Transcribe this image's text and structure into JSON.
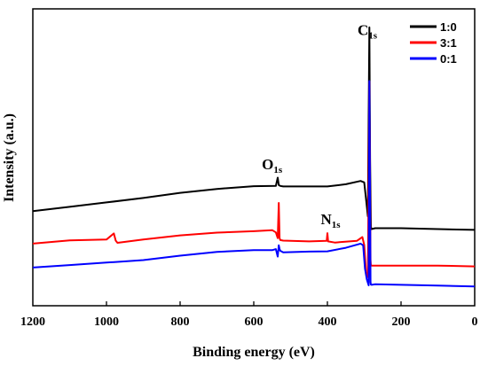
{
  "chart_data": {
    "type": "line",
    "xlabel": "Binding energy (eV)",
    "ylabel": "Intensity (a.u.)",
    "xlim": [
      1200,
      0
    ],
    "x_reversed": true,
    "x_ticks": [
      1200,
      1000,
      800,
      600,
      400,
      200,
      0
    ],
    "y_ticks_shown": false,
    "grid": false,
    "legend_position": "top-right",
    "y_unit_note": "arbitrary units, normalized 0-100",
    "ylim": [
      0,
      100
    ],
    "series": [
      {
        "name": "1:0",
        "color": "#000000",
        "x": [
          1200,
          1100,
          1000,
          900,
          800,
          700,
          600,
          540,
          535,
          532,
          528,
          520,
          450,
          400,
          350,
          310,
          300,
          295,
          290,
          286,
          284,
          282,
          280,
          270,
          200,
          100,
          0
        ],
        "y": [
          32.8,
          34.4,
          36.0,
          37.6,
          39.5,
          40.9,
          41.9,
          42.0,
          45.0,
          42.3,
          42.0,
          41.8,
          41.8,
          41.8,
          42.6,
          43.8,
          43.3,
          37.0,
          30.9,
          99.7,
          52.0,
          27.1,
          26.3,
          26.6,
          26.6,
          26.3,
          26.0
        ]
      },
      {
        "name": "3:1",
        "color": "#ff0000",
        "x": [
          1200,
          1100,
          1000,
          980,
          975,
          970,
          900,
          800,
          700,
          600,
          550,
          540,
          535,
          532,
          530,
          528,
          520,
          450,
          402,
          400,
          398,
          380,
          320,
          305,
          300,
          295,
          290,
          286,
          283,
          282,
          280,
          270,
          200,
          100,
          0
        ],
        "y": [
          21.0,
          22.2,
          22.5,
          24.7,
          22.1,
          21.3,
          22.5,
          24.0,
          25.0,
          25.5,
          25.9,
          25.1,
          23.0,
          35.8,
          23.0,
          22.3,
          22.1,
          21.8,
          22.0,
          24.8,
          21.8,
          21.4,
          22.0,
          23.4,
          20.5,
          10.5,
          8.8,
          80.0,
          15.0,
          13.2,
          13.0,
          13.0,
          13.0,
          13.0,
          12.7
        ]
      },
      {
        "name": "0:1",
        "color": "#0000ff",
        "x": [
          1200,
          1100,
          1000,
          900,
          800,
          700,
          600,
          550,
          540,
          535,
          532,
          530,
          528,
          520,
          450,
          400,
          350,
          310,
          303,
          298,
          293,
          288,
          286,
          283,
          282,
          280,
          270,
          200,
          100,
          0
        ],
        "y": [
          12.3,
          13.2,
          14.1,
          15.0,
          16.6,
          18.0,
          18.6,
          18.6,
          19.0,
          16.3,
          20.4,
          19.0,
          18.4,
          17.8,
          18.1,
          18.2,
          19.5,
          21.0,
          20.4,
          12.0,
          8.0,
          5.8,
          80.2,
          7.0,
          6.1,
          6.0,
          6.2,
          6.0,
          5.7,
          5.4
        ]
      }
    ],
    "annotations": [
      {
        "main": "C",
        "sub": "1s",
        "x": 318,
        "y": 97
      },
      {
        "main": "O",
        "sub": "1s",
        "x": 578,
        "y": 48
      },
      {
        "main": "N",
        "sub": "1s",
        "x": 418,
        "y": 28
      }
    ]
  }
}
